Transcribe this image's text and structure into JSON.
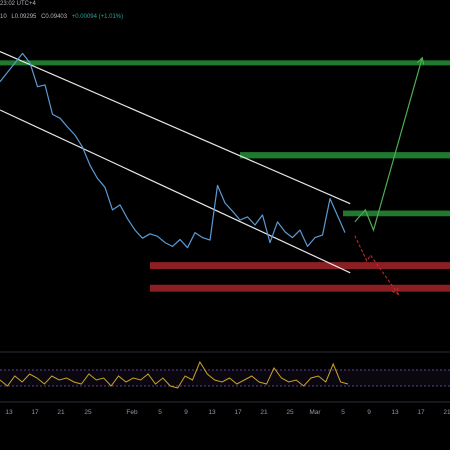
{
  "header": {
    "time_text": "23:02 UTC+4",
    "ohlc_prefix": "10",
    "low_text": "L0.09295",
    "close_text": "C0.09403",
    "change_text": "+0.00094 (+1.01%)"
  },
  "colors": {
    "background": "#000000",
    "price_line": "#5b9bd5",
    "channel_line": "#e6e6e6",
    "support_zone": "#8b1f24",
    "resistance_zone": "#1f7a2e",
    "bull_path": "#4caf50",
    "bear_path": "#c62828",
    "oscillator": "#c9a227",
    "oscillator_band": "#7e57c2",
    "axis_text": "#9598a1"
  },
  "chart_data": [
    {
      "type": "line",
      "x_tick_labels": [
        "13",
        "17",
        "21",
        "25",
        "Feb",
        "5",
        "9",
        "13",
        "17",
        "21",
        "25",
        "Mar",
        "5",
        "9",
        "13",
        "17",
        "21"
      ],
      "series": [
        {
          "values": [
            0.118,
            0.1195,
            0.121,
            0.1225,
            0.121,
            0.1172,
            0.1175,
            0.1128,
            0.1122,
            0.1108,
            0.1095,
            0.1076,
            0.1047,
            0.1026,
            0.1012,
            0.0976,
            0.0984,
            0.0962,
            0.0944,
            0.0931,
            0.0938,
            0.0934,
            0.0924,
            0.0918,
            0.0929,
            0.0916,
            0.094,
            0.0932,
            0.0928,
            0.1015,
            0.0987,
            0.0974,
            0.096,
            0.0965,
            0.0952,
            0.0968,
            0.0924,
            0.0957,
            0.0941,
            0.0932,
            0.0944,
            0.0918,
            0.0932,
            0.0936,
            0.0994,
            0.0967,
            0.094
          ]
        }
      ],
      "zones": {
        "resistance": [
          [
            0.1206,
            0.1214
          ],
          [
            0.1058,
            0.1068
          ],
          [
            0.0966,
            0.0975
          ]
        ],
        "support": [
          [
            0.0882,
            0.0893
          ],
          [
            0.0846,
            0.0857
          ]
        ]
      },
      "trendlines": [
        {
          "name": "channel-top",
          "points": [
            [
              0,
              0.1228
            ],
            [
              46.7,
              0.0986
            ]
          ]
        },
        {
          "name": "channel-bottom",
          "points": [
            [
              0,
              0.1135
            ],
            [
              46.7,
              0.0876
            ]
          ]
        }
      ],
      "projections": {
        "bullish": [
          [
            47.3,
            0.0957
          ],
          [
            48.7,
            0.0976
          ],
          [
            49.8,
            0.0944
          ],
          [
            56.3,
            0.1218
          ]
        ],
        "bearish": [
          [
            47.3,
            0.0935
          ],
          [
            48.9,
            0.0895
          ],
          [
            49.4,
            0.0904
          ],
          [
            53.1,
            0.0842
          ]
        ]
      },
      "ylim": [
        0.075,
        0.131
      ],
      "xlim": [
        0,
        60
      ],
      "grid": false
    },
    {
      "type": "line",
      "series": [
        {
          "values": [
            0.45,
            0.3,
            0.55,
            0.4,
            0.6,
            0.5,
            0.35,
            0.55,
            0.45,
            0.5,
            0.4,
            0.35,
            0.6,
            0.45,
            0.5,
            0.3,
            0.55,
            0.4,
            0.5,
            0.45,
            0.6,
            0.35,
            0.5,
            0.3,
            0.25,
            0.55,
            0.45,
            0.9,
            0.6,
            0.45,
            0.4,
            0.5,
            0.35,
            0.45,
            0.55,
            0.4,
            0.35,
            0.75,
            0.5,
            0.4,
            0.45,
            0.3,
            0.5,
            0.55,
            0.4,
            0.85,
            0.4,
            0.35
          ]
        }
      ],
      "bands": [
        0.3,
        0.7
      ],
      "ylim": [
        0,
        1
      ]
    }
  ]
}
